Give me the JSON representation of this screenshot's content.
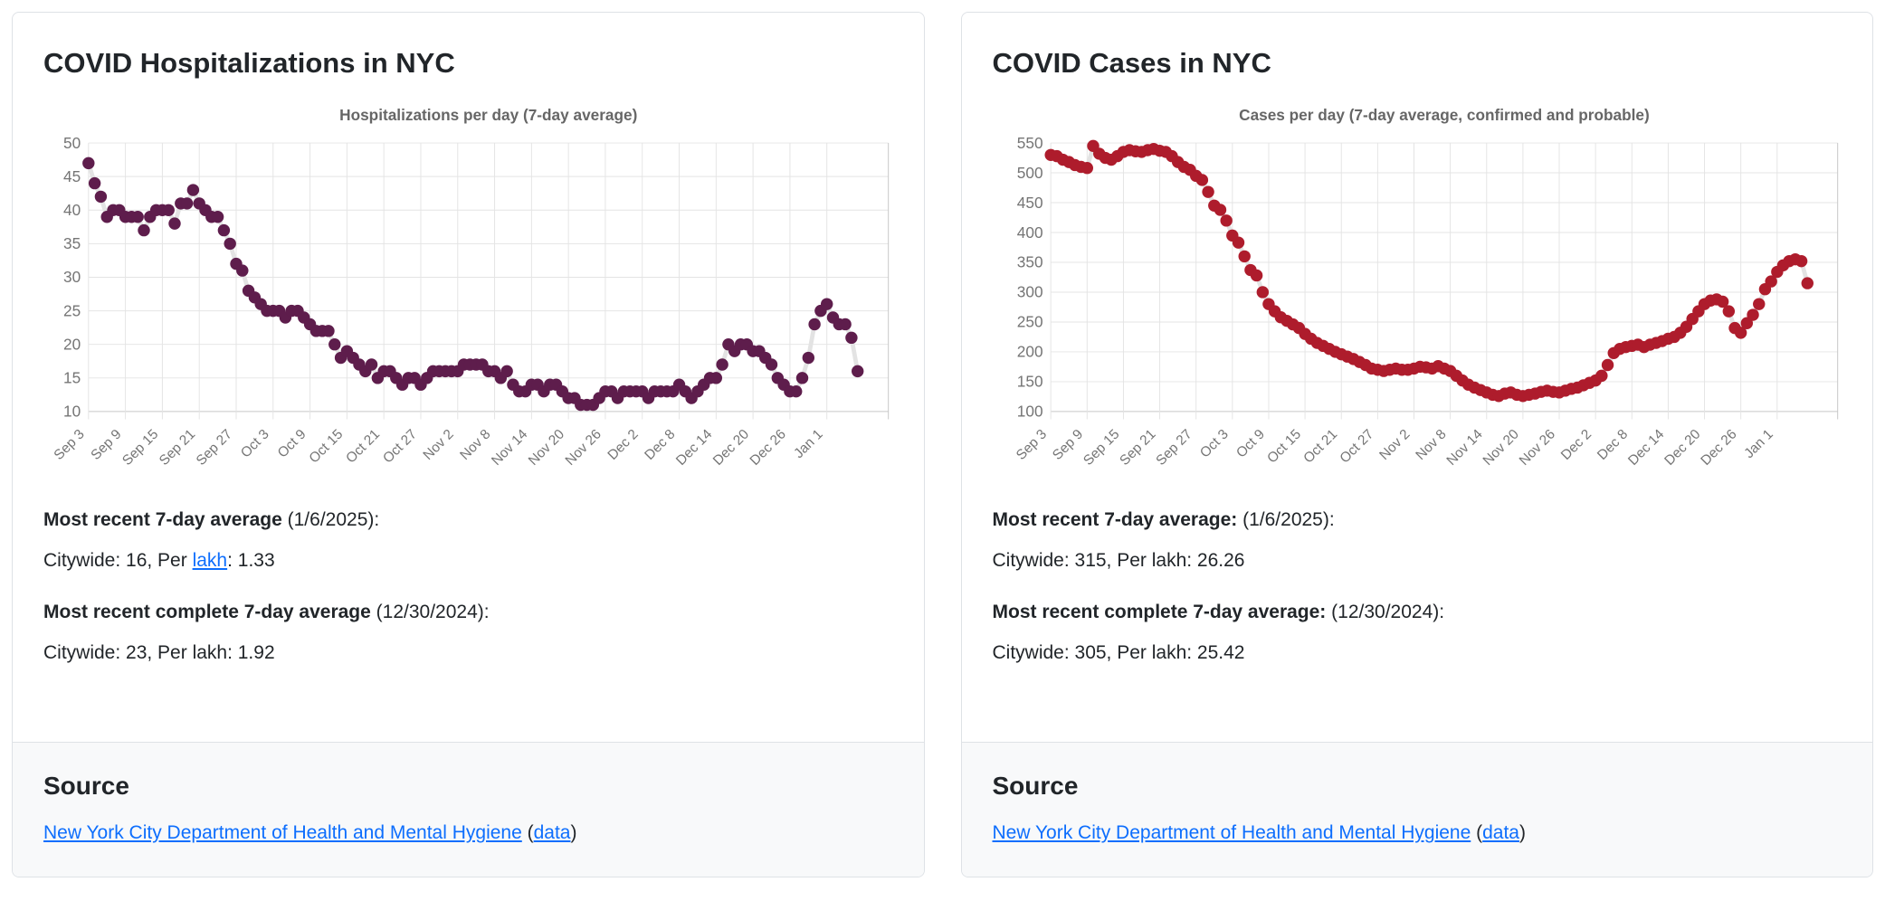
{
  "colors": {
    "link": "#0d6efd",
    "hosp_dot": "#5e1d4c",
    "cases_dot": "#ae1c2c",
    "connector": "#e3e3e3"
  },
  "cards": [
    {
      "title": "COVID Hospitalizations in NYC",
      "stats": {
        "recent_label": "Most recent 7-day average",
        "recent_date": " (1/6/2025):",
        "recent_value_prefix": "Citywide: 16, Per ",
        "lakh_link_text": "lakh",
        "recent_value_suffix": ": 1.33",
        "complete_label": "Most recent complete 7-day average",
        "complete_date": " (12/30/2024):",
        "complete_value": "Citywide: 23, Per lakh: 1.92"
      },
      "source": {
        "heading": "Source",
        "link_text": "New York City Department of Health and Mental Hygiene",
        "open_paren": " (",
        "data_link_text": "data",
        "close_paren": ")"
      }
    },
    {
      "title": "COVID Cases in NYC",
      "stats": {
        "recent_label": "Most recent 7-day average:",
        "recent_date": " (1/6/2025):",
        "recent_value": "Citywide: 315, Per lakh: 26.26",
        "complete_label": "Most recent complete 7-day average:",
        "complete_date": " (12/30/2024):",
        "complete_value": "Citywide: 305, Per lakh: 25.42"
      },
      "source": {
        "heading": "Source",
        "link_text": "New York City Department of Health and Mental Hygiene",
        "open_paren": " (",
        "data_link_text": "data",
        "close_paren": ")"
      }
    }
  ],
  "chart_data": [
    {
      "type": "scatter",
      "title": "Hospitalizations per day (7-day average)",
      "x_tick_labels": [
        "Sep 3",
        "Sep 9",
        "Sep 15",
        "Sep 21",
        "Sep 27",
        "Oct 3",
        "Oct 9",
        "Oct 15",
        "Oct 21",
        "Oct 27",
        "Nov 2",
        "Nov 8",
        "Nov 14",
        "Nov 20",
        "Nov 26",
        "Dec 2",
        "Dec 8",
        "Dec 14",
        "Dec 20",
        "Dec 26",
        "Jan 1"
      ],
      "x_tick_every": 6,
      "x_start_date": "Sep 3",
      "x_end_date": "Jan 6",
      "values": [
        47,
        44,
        42,
        39,
        40,
        40,
        39,
        39,
        39,
        37,
        39,
        40,
        40,
        40,
        38,
        41,
        41,
        43,
        41,
        40,
        39,
        39,
        37,
        35,
        32,
        31,
        28,
        27,
        26,
        25,
        25,
        25,
        24,
        25,
        25,
        24,
        23,
        22,
        22,
        22,
        20,
        18,
        19,
        18,
        17,
        16,
        17,
        15,
        16,
        16,
        15,
        14,
        15,
        15,
        14,
        15,
        16,
        16,
        16,
        16,
        16,
        17,
        17,
        17,
        17,
        16,
        16,
        15,
        16,
        14,
        13,
        13,
        14,
        14,
        13,
        14,
        14,
        13,
        12,
        12,
        11,
        11,
        11,
        12,
        13,
        13,
        12,
        13,
        13,
        13,
        13,
        12,
        13,
        13,
        13,
        13,
        14,
        13,
        12,
        13,
        14,
        15,
        15,
        17,
        20,
        19,
        20,
        20,
        19,
        19,
        18,
        17,
        15,
        14,
        13,
        13,
        15,
        18,
        23,
        25,
        26,
        24,
        23,
        23,
        21,
        16
      ],
      "ylim": [
        10,
        50
      ],
      "yticks": [
        10,
        15,
        20,
        25,
        30,
        35,
        40,
        45,
        50
      ],
      "grid": true,
      "legend": "none",
      "dot_color": "#5e1d4c",
      "line_color": "#e3e3e3"
    },
    {
      "type": "scatter",
      "title": "Cases per day (7-day average, confirmed and probable)",
      "x_tick_labels": [
        "Sep 3",
        "Sep 9",
        "Sep 15",
        "Sep 21",
        "Sep 27",
        "Oct 3",
        "Oct 9",
        "Oct 15",
        "Oct 21",
        "Oct 27",
        "Nov 2",
        "Nov 8",
        "Nov 14",
        "Nov 20",
        "Nov 26",
        "Dec 2",
        "Dec 8",
        "Dec 14",
        "Dec 20",
        "Dec 26",
        "Jan 1"
      ],
      "x_tick_every": 6,
      "x_start_date": "Sep 3",
      "x_end_date": "Jan 6",
      "values": [
        530,
        528,
        522,
        518,
        513,
        510,
        508,
        545,
        532,
        525,
        522,
        528,
        535,
        538,
        536,
        535,
        538,
        540,
        537,
        535,
        528,
        518,
        510,
        505,
        495,
        488,
        468,
        445,
        438,
        420,
        395,
        383,
        360,
        337,
        328,
        300,
        280,
        268,
        258,
        252,
        246,
        240,
        230,
        222,
        215,
        210,
        205,
        200,
        196,
        192,
        188,
        183,
        178,
        172,
        170,
        168,
        170,
        172,
        170,
        170,
        172,
        175,
        174,
        172,
        176,
        172,
        168,
        160,
        152,
        145,
        140,
        136,
        132,
        128,
        126,
        130,
        132,
        128,
        126,
        128,
        130,
        133,
        135,
        133,
        132,
        135,
        138,
        140,
        144,
        148,
        152,
        160,
        178,
        198,
        205,
        208,
        210,
        212,
        208,
        212,
        215,
        218,
        222,
        225,
        232,
        242,
        255,
        268,
        280,
        286,
        288,
        284,
        268,
        240,
        232,
        248,
        262,
        280,
        305,
        318,
        334,
        345,
        352,
        355,
        352,
        315
      ],
      "ylim": [
        100,
        550
      ],
      "yticks": [
        100,
        150,
        200,
        250,
        300,
        350,
        400,
        450,
        500,
        550
      ],
      "grid": true,
      "legend": "none",
      "dot_color": "#ae1c2c",
      "line_color": "#e3e3e3"
    }
  ]
}
